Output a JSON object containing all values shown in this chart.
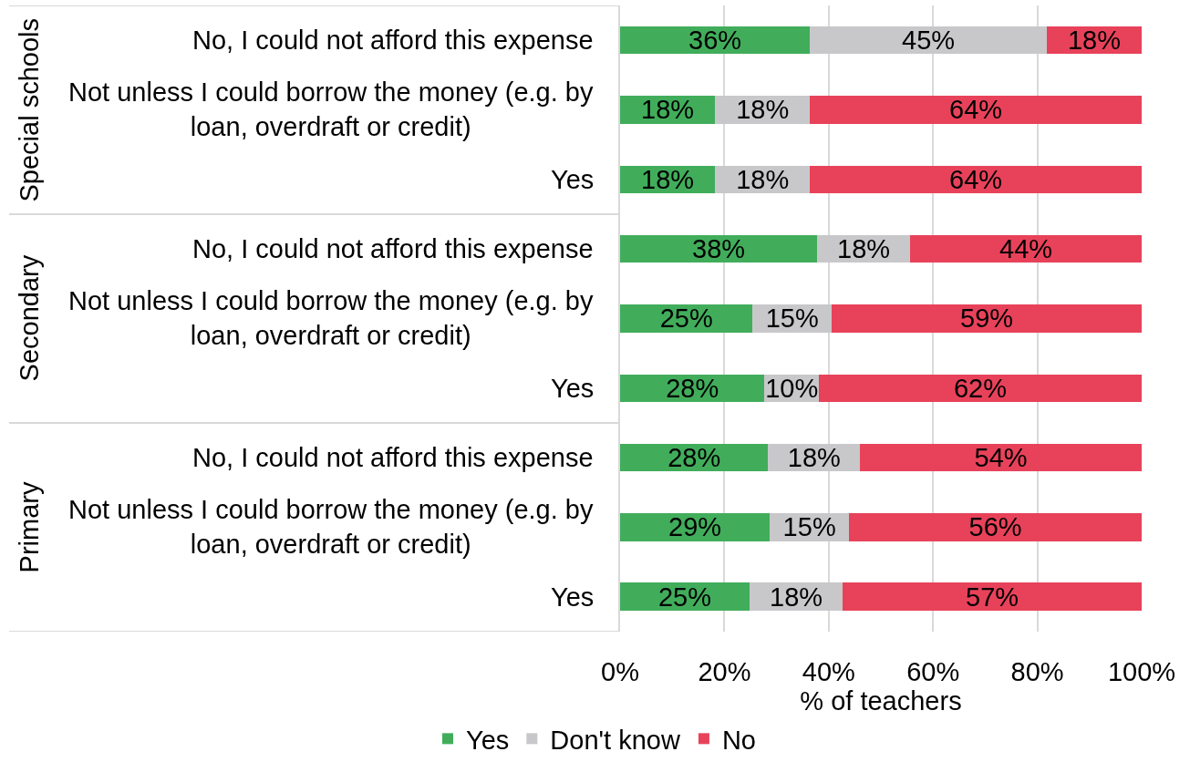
{
  "chart_data": {
    "type": "bar",
    "orientation": "horizontal",
    "stacked": true,
    "categories": [
      "No, I could not afford this expense",
      "Not unless I could borrow the money (e.g. by loan, overdraft or credit)",
      "Yes",
      "No, I could not afford this expense",
      "Not unless I could borrow the money (e.g. by loan, overdraft or credit)",
      "Yes",
      "No, I could not afford this expense",
      "Not unless I could borrow the money (e.g. by loan, overdraft or credit)",
      "Yes"
    ],
    "series": [
      {
        "name": "Yes",
        "color": "#41ad5b",
        "values": [
          36.4,
          18.2,
          18.2,
          37.8,
          25.4,
          27.7,
          28.4,
          28.7,
          24.8
        ],
        "value_labels": [
          "36%",
          "18%",
          "18%",
          "38%",
          "25%",
          "28%",
          "28%",
          "29%",
          "25%"
        ]
      },
      {
        "name": "Don't know",
        "color": "#c8c8ca",
        "values": [
          45.4,
          18.2,
          18.2,
          17.8,
          15.2,
          10.4,
          17.6,
          15.2,
          17.9
        ],
        "value_labels": [
          "45%",
          "18%",
          "18%",
          "18%",
          "15%",
          "10%",
          "18%",
          "15%",
          "18%"
        ]
      },
      {
        "name": "No",
        "color": "#e8425a",
        "values": [
          18.2,
          63.6,
          63.6,
          44.4,
          59.4,
          61.9,
          54.0,
          56.1,
          57.3
        ],
        "value_labels": [
          "18%",
          "64%",
          "64%",
          "44%",
          "59%",
          "62%",
          "54%",
          "56%",
          "57%"
        ]
      }
    ],
    "xlim": [
      0,
      100
    ],
    "xticks": [
      {
        "value": 0,
        "label": "0%"
      },
      {
        "value": 20,
        "label": "20%"
      },
      {
        "value": 40,
        "label": "40%"
      },
      {
        "value": 60,
        "label": "60%"
      },
      {
        "value": 80,
        "label": "80%"
      },
      {
        "value": 100,
        "label": "100%"
      }
    ],
    "xlabel": "% of teachers",
    "grid": "x",
    "legend": "bottom",
    "annotations": [
      "Special schools",
      "Secondary",
      "Primary"
    ]
  }
}
